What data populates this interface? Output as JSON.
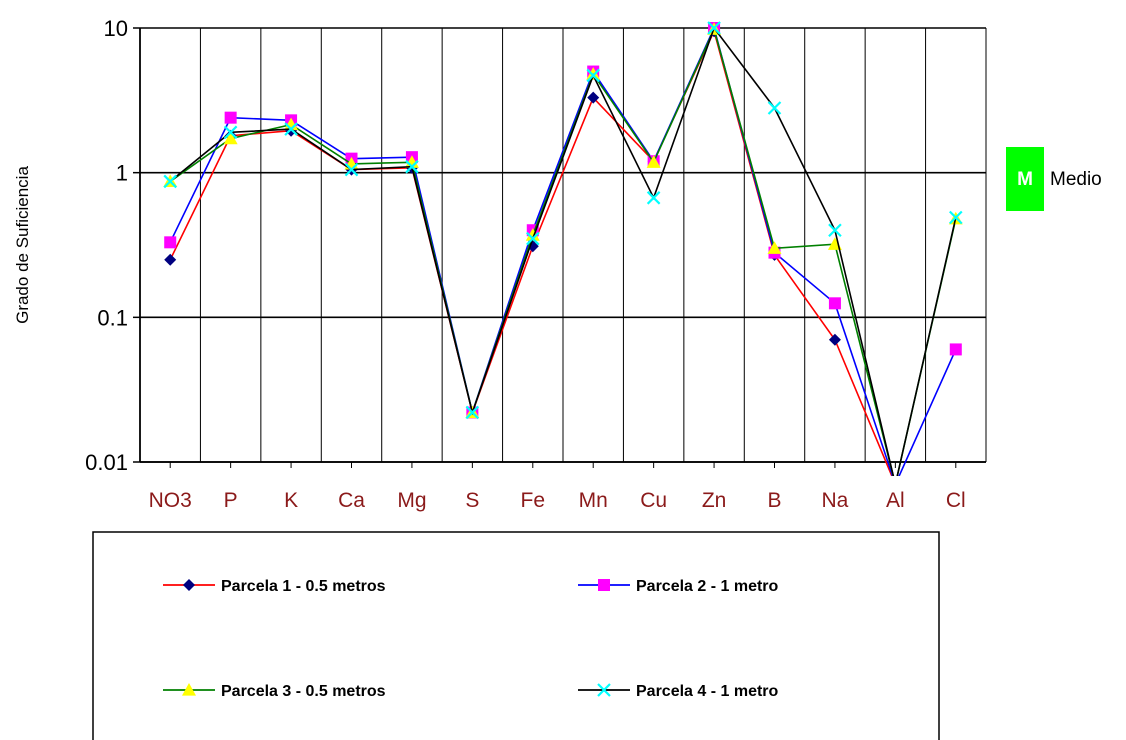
{
  "chart_data": {
    "type": "line",
    "yscale": "log",
    "ylim": [
      0.01,
      10
    ],
    "yticks": [
      "10",
      "1",
      "0.1",
      "0.01"
    ],
    "ylabel": "Grado de Suficiencia",
    "xlabel": "",
    "grid": true,
    "categories": [
      "NO3",
      "P",
      "K",
      "Ca",
      "Mg",
      "S",
      "Fe",
      "Mn",
      "Cu",
      "Zn",
      "B",
      "Na",
      "Al",
      "Cl"
    ],
    "series": [
      {
        "name": "Parcela 1 - 0.5 metros",
        "color": "#ff0000",
        "marker": "diamond",
        "marker_color": "#000080",
        "values": [
          0.25,
          1.8,
          1.95,
          1.05,
          1.08,
          0.022,
          0.31,
          3.3,
          1.2,
          9.5,
          0.27,
          0.07,
          0.007,
          null
        ]
      },
      {
        "name": "Parcela 2 - 1 metro",
        "color": "#0000ff",
        "marker": "square",
        "marker_color": "#ff00ff",
        "values": [
          0.33,
          2.4,
          2.3,
          1.25,
          1.28,
          0.022,
          0.4,
          5.0,
          1.2,
          10.0,
          0.28,
          0.125,
          0.007,
          0.06
        ]
      },
      {
        "name": "Parcela 3 - 0.5 metros",
        "color": "#008000",
        "marker": "triangle",
        "marker_color": "#ffff00",
        "values": [
          0.87,
          1.72,
          2.15,
          1.15,
          1.18,
          0.022,
          0.37,
          4.8,
          1.18,
          9.8,
          0.3,
          0.32,
          0.007,
          0.48
        ]
      },
      {
        "name": "Parcela 4 - 1 metro",
        "color": "#000000",
        "marker": "x",
        "marker_color": "#00ffff",
        "values": [
          0.87,
          1.9,
          2.0,
          1.05,
          1.1,
          0.022,
          0.35,
          4.7,
          0.67,
          10.0,
          2.8,
          0.4,
          0.007,
          0.49
        ]
      }
    ]
  },
  "side_label": {
    "badge": "M",
    "text": "Medio",
    "color": "#00ff00"
  },
  "colors": {
    "grid": "#000000",
    "tick_text": "#8b1a1a"
  }
}
